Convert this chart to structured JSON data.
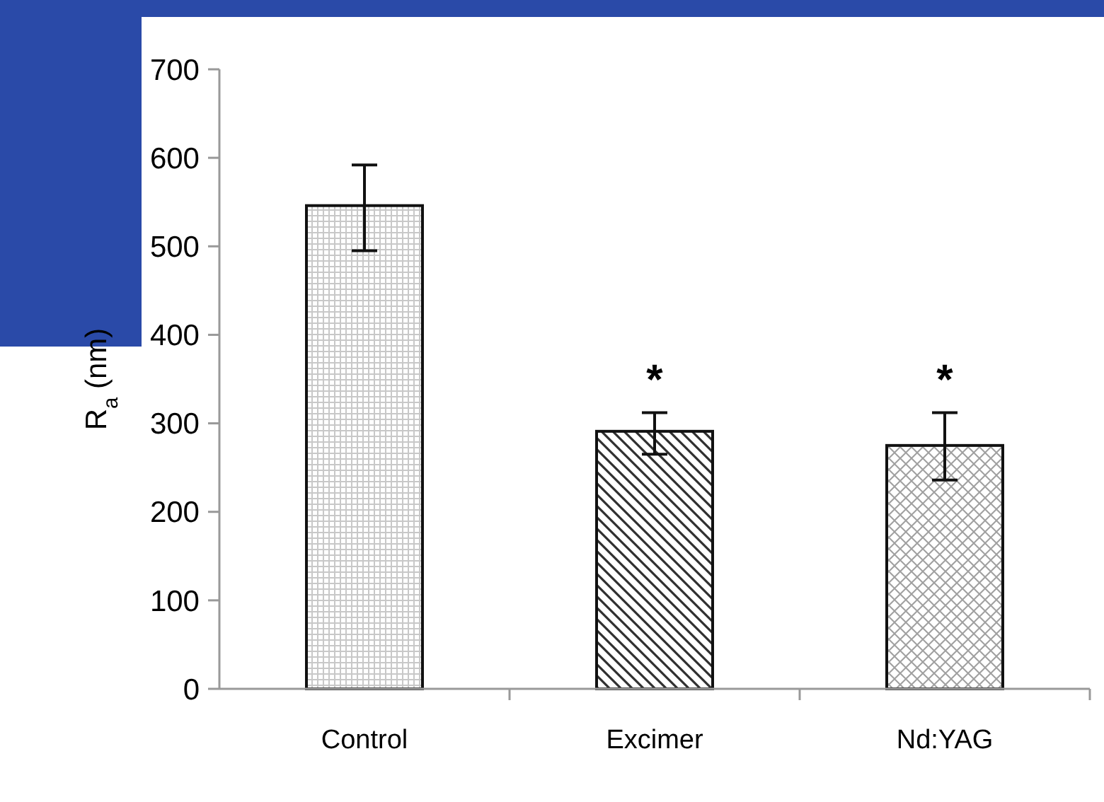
{
  "chart_data": {
    "type": "bar",
    "ylabel": "R$_{a}$ (nm)",
    "categories": [
      "Control",
      "Excimer",
      "Nd:YAG"
    ],
    "values": [
      546,
      291,
      275
    ],
    "errors": [
      [
        495,
        592
      ],
      [
        265,
        312
      ],
      [
        236,
        312
      ]
    ],
    "ylim": [
      0,
      700
    ],
    "yticks": [
      0,
      100,
      200,
      300,
      400,
      500,
      600,
      700
    ],
    "grid": false,
    "annotations": [
      "*",
      "*"
    ]
  }
}
